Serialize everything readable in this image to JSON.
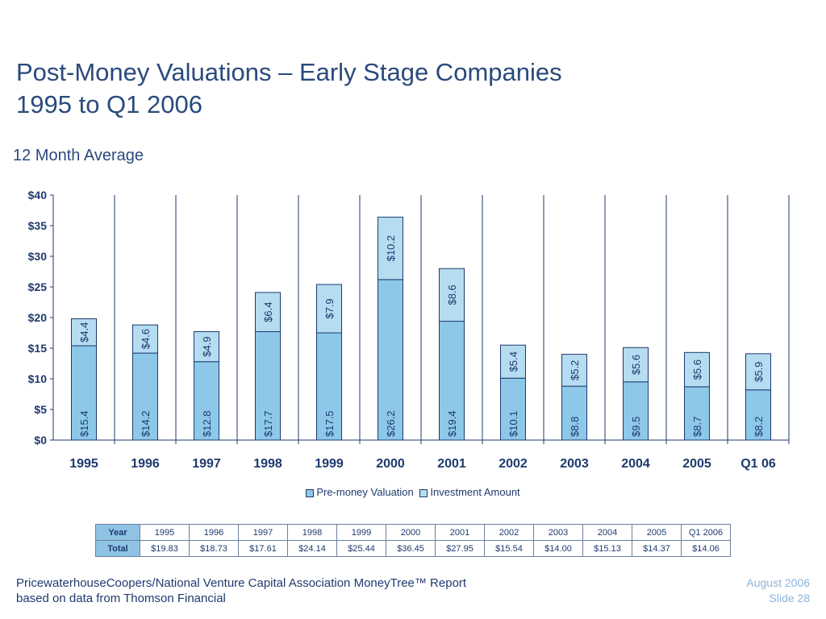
{
  "title_line1": "Post-Money Valuations – Early Stage Companies",
  "title_line2": "1995 to Q1 2006",
  "subtitle": "12 Month Average",
  "colors": {
    "pre_money": "#8dc8e8",
    "investment": "#b5dcf0",
    "stroke": "#1f3a6e",
    "text": "#1f3a6e"
  },
  "chart_data": {
    "type": "bar",
    "stacked": true,
    "categories": [
      "1995",
      "1996",
      "1997",
      "1998",
      "1999",
      "2000",
      "2001",
      "2002",
      "2003",
      "2004",
      "2005",
      "Q1 06"
    ],
    "series": [
      {
        "name": "Pre-money Valuation",
        "values": [
          15.4,
          14.2,
          12.8,
          17.7,
          17.5,
          26.2,
          19.4,
          10.1,
          8.8,
          9.5,
          8.7,
          8.2
        ],
        "labels": [
          "$15.4",
          "$14.2",
          "$12.8",
          "$17.7",
          "$17.5",
          "$26.2",
          "$19.4",
          "$10.1",
          "$8.8",
          "$9.5",
          "$8.7",
          "$8.2"
        ]
      },
      {
        "name": "Investment Amount",
        "values": [
          4.4,
          4.6,
          4.9,
          6.4,
          7.9,
          10.2,
          8.6,
          5.4,
          5.2,
          5.6,
          5.6,
          5.9
        ],
        "labels": [
          "$4.4",
          "$4.6",
          "$4.9",
          "$6.4",
          "$7.9",
          "$10.2",
          "$8.6",
          "$5.4",
          "$5.2",
          "$5.6",
          "$5.6",
          "$5.9"
        ]
      }
    ],
    "ylim": [
      0,
      40
    ],
    "yticks": [
      0,
      5,
      10,
      15,
      20,
      25,
      30,
      35,
      40
    ],
    "ytick_labels": [
      "$0",
      "$5",
      "$10",
      "$15",
      "$20",
      "$25",
      "$30",
      "$35",
      "$40"
    ],
    "legend_position": "bottom",
    "grid": false,
    "category_dividers": true
  },
  "table": {
    "row1_header": "Year",
    "row2_header": "Total",
    "years": [
      "1995",
      "1996",
      "1997",
      "1998",
      "1999",
      "2000",
      "2001",
      "2002",
      "2003",
      "2004",
      "2005",
      "Q1 2006"
    ],
    "totals": [
      "$19.83",
      "$18.73",
      "$17.61",
      "$24.14",
      "$25.44",
      "$36.45",
      "$27.95",
      "$15.54",
      "$14.00",
      "$15.13",
      "$14.37",
      "$14.06"
    ]
  },
  "footer": {
    "line1": "PricewaterhouseCoopers/National Venture Capital Association MoneyTree™ Report",
    "line2": "based on data from Thomson Financial",
    "date": "August 2006",
    "slide": "Slide 28"
  }
}
